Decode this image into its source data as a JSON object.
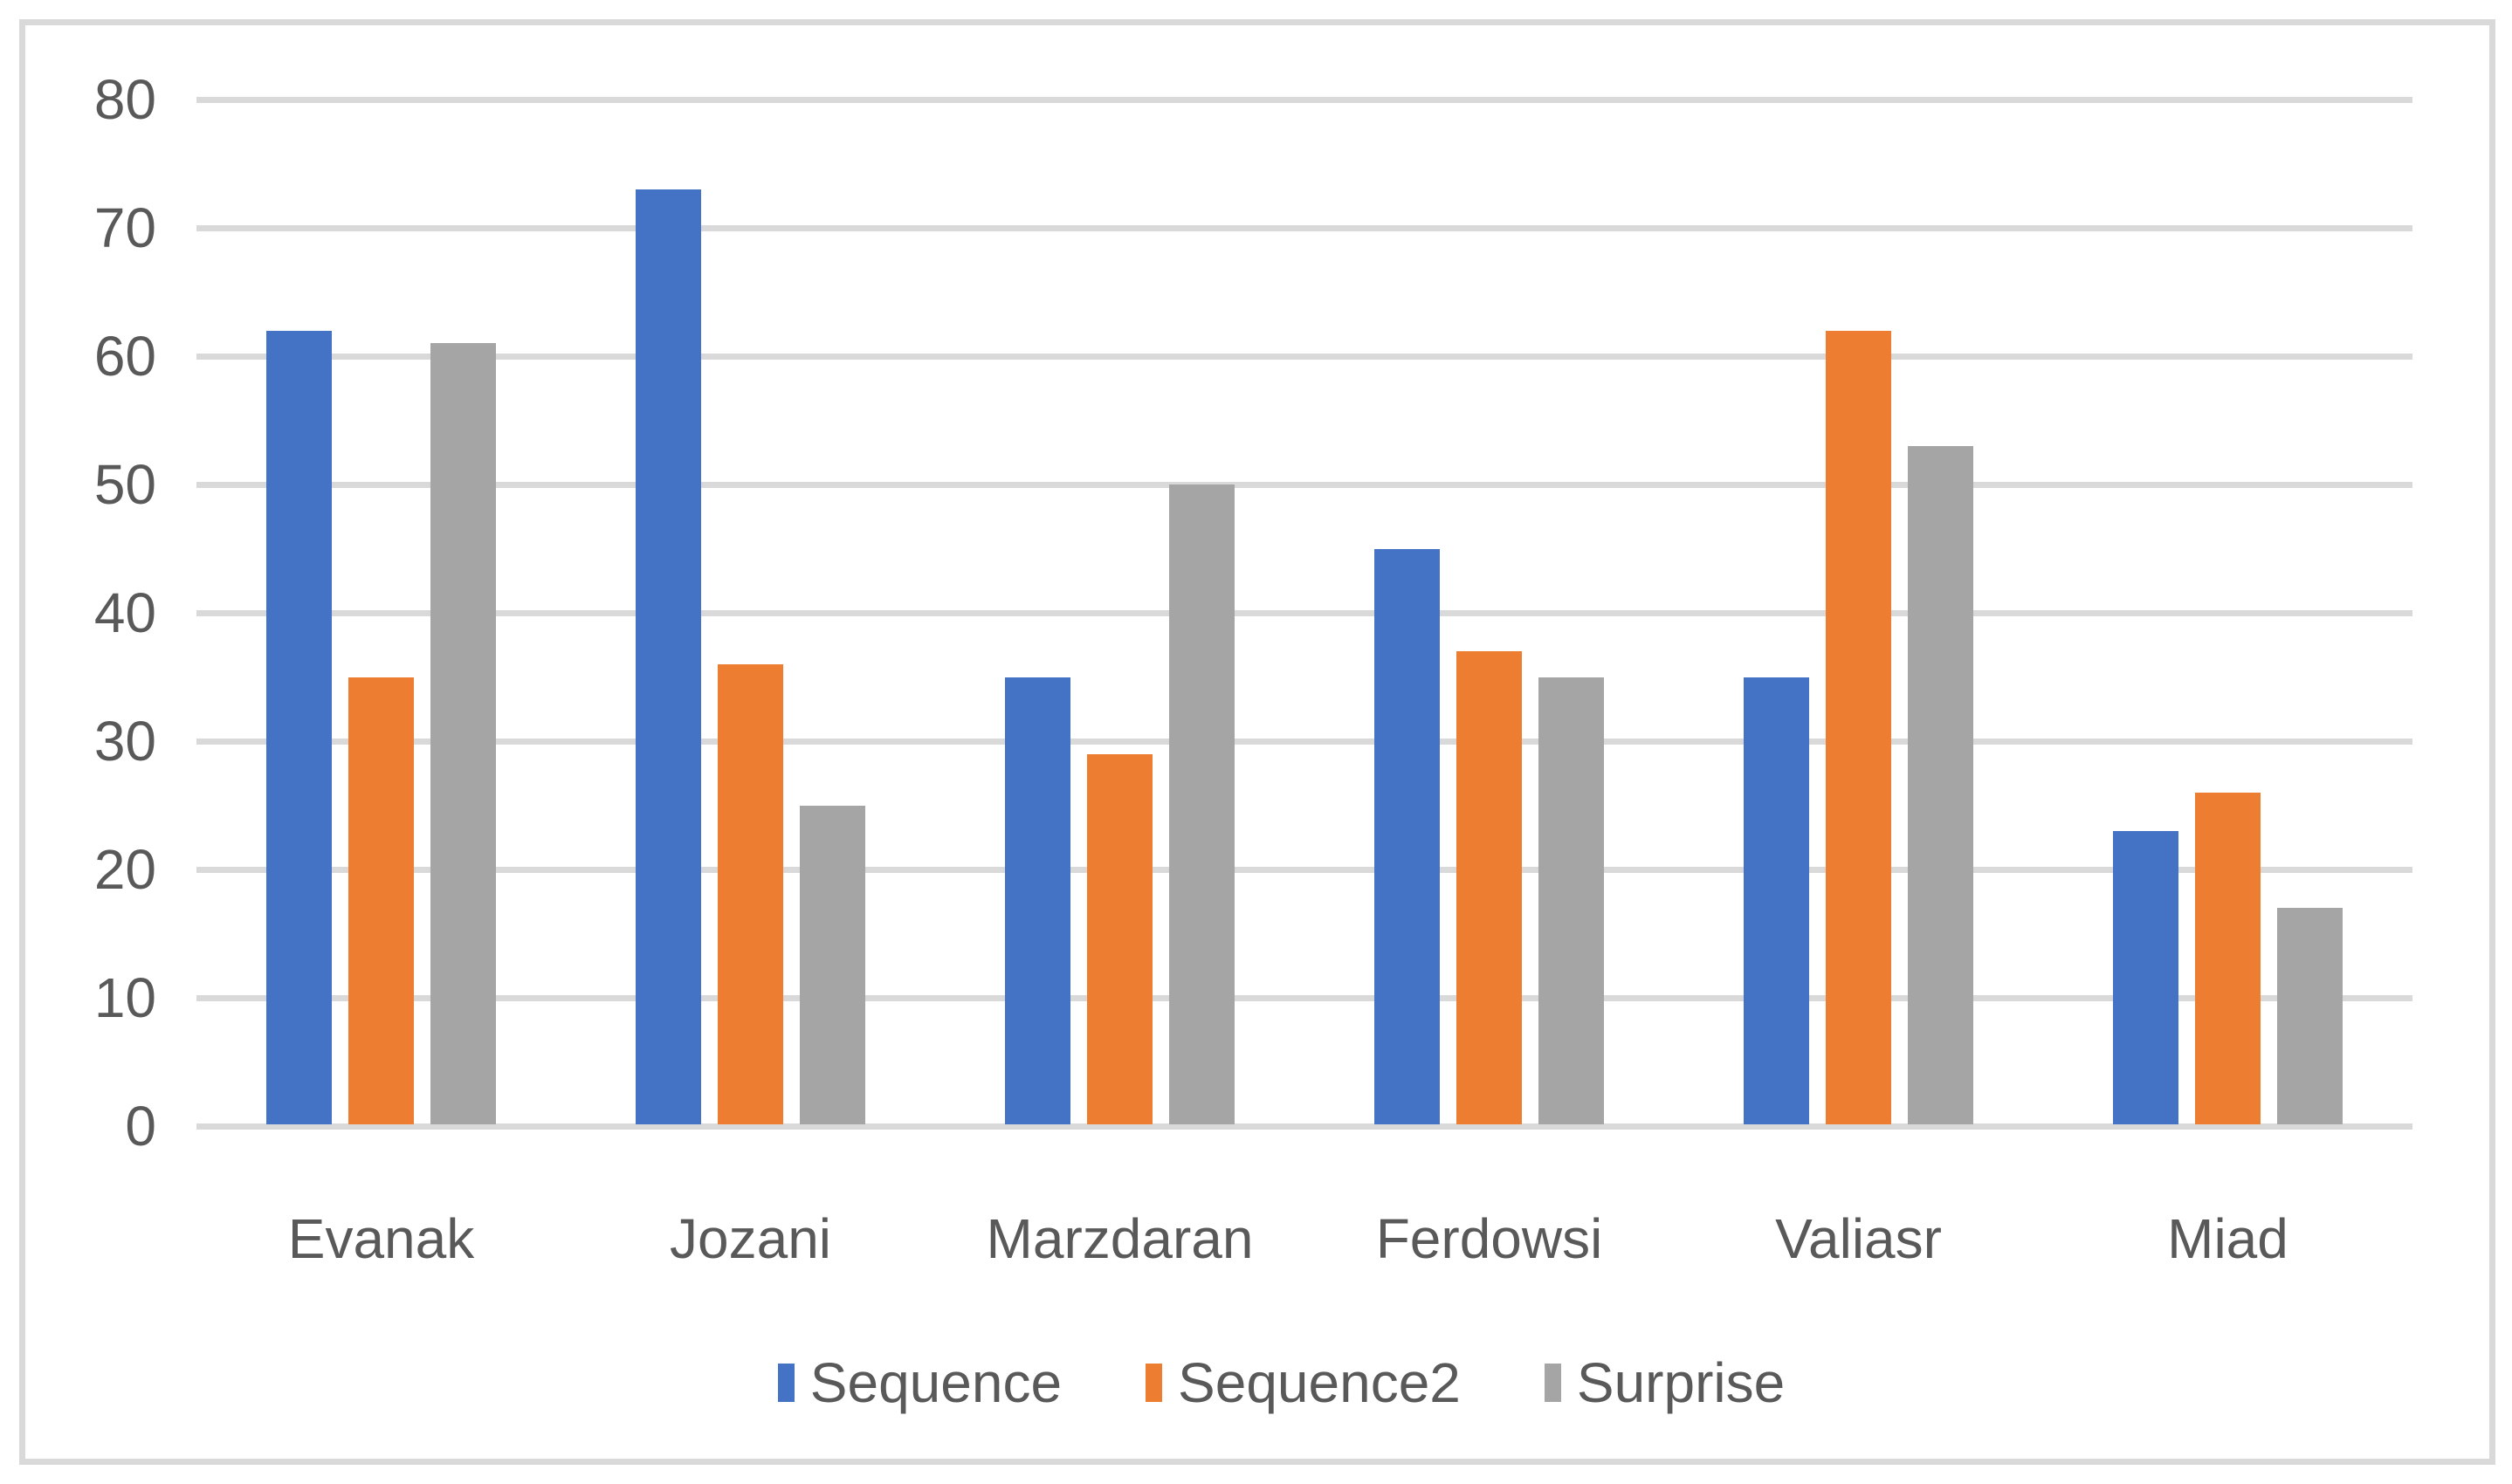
{
  "chart_data": {
    "type": "bar",
    "title": "",
    "xlabel": "",
    "ylabel": "",
    "categories": [
      "Evanak",
      "Jozani",
      "Marzdaran",
      "Ferdowsi",
      "Valiasr",
      "Miad"
    ],
    "series": [
      {
        "name": "Sequence",
        "color": "#4472C4",
        "values": [
          62,
          73,
          35,
          45,
          35,
          23
        ]
      },
      {
        "name": "Sequence2",
        "color": "#ED7D31",
        "values": [
          35,
          36,
          29,
          37,
          62,
          26
        ]
      },
      {
        "name": "Surprise",
        "color": "#A5A5A5",
        "values": [
          61,
          25,
          50,
          35,
          53,
          17
        ]
      }
    ],
    "ylim": [
      0,
      80
    ],
    "yticks": [
      0,
      10,
      20,
      30,
      40,
      50,
      60,
      70,
      80
    ],
    "grid": "horizontal",
    "legend_position": "bottom"
  },
  "style": {
    "gridline_color": "#D9D9D9",
    "frame_border_color": "#D9D9D9",
    "axis_text_color": "#595959",
    "background_color": "#FFFFFF"
  }
}
